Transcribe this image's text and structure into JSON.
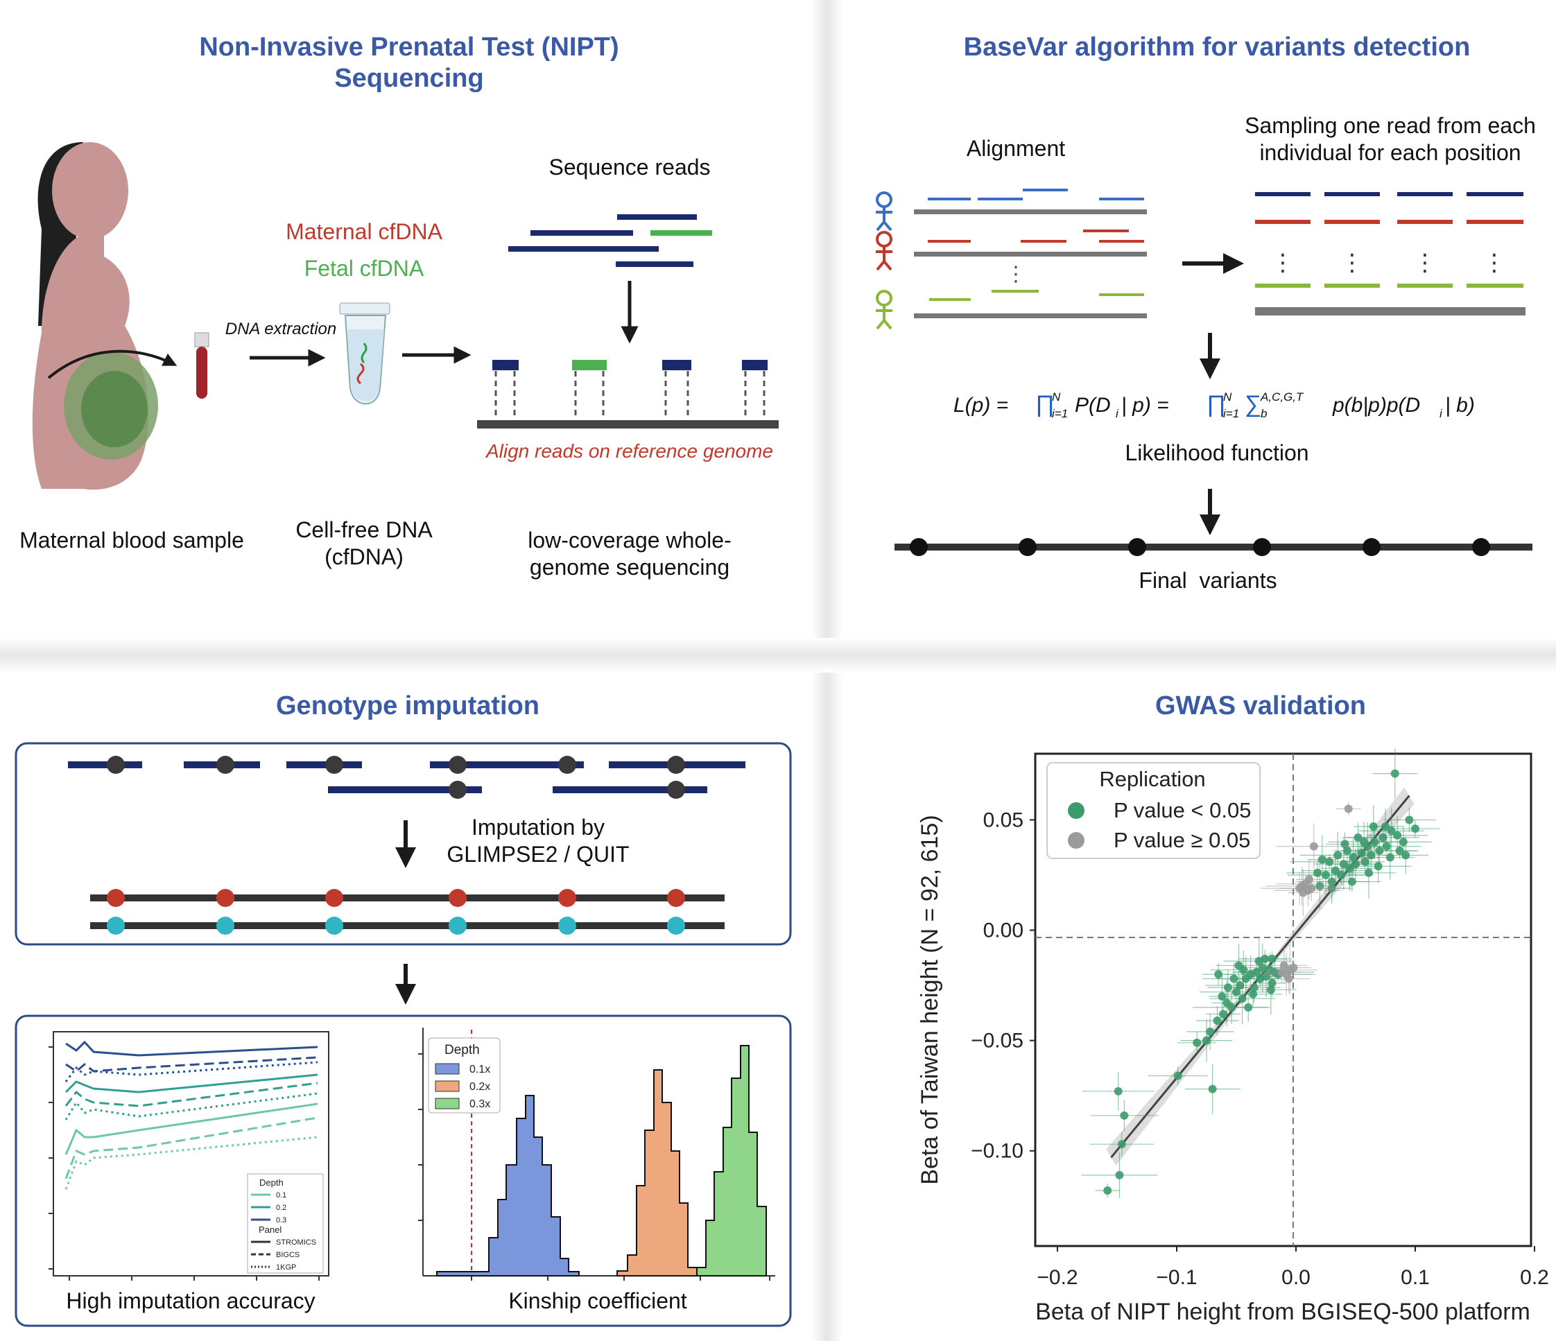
{
  "panel_nipt": {
    "title_line1": "Non-Invasive Prenatal Test (NIPT)",
    "title_line2": "Sequencing",
    "sequence_reads": "Sequence reads",
    "maternal_cfdna": "Maternal cfDNA",
    "fetal_cfdna": "Fetal cfDNA",
    "dna_extraction": "DNA extraction",
    "align_reads": "Align reads on reference genome",
    "maternal_blood_sample": "Maternal blood sample",
    "cell_free_line1": "Cell-free DNA",
    "cell_free_line2": "(cfDNA)",
    "lowcov_line1": "low-coverage whole-",
    "lowcov_line2": "genome sequencing"
  },
  "panel_basevar": {
    "title": "BaseVar algorithm for variants detection",
    "alignment": "Alignment",
    "sampling_line1": "Sampling one read from each",
    "sampling_line2": "individual for each position",
    "likelihood_label": "Likelihood function",
    "final_variants": "Final  variants",
    "colors": {
      "blue": "#3a6fc4",
      "red": "#c0392b",
      "green": "#8bb83a"
    }
  },
  "panel_imputation": {
    "title": "Genotype imputation",
    "imputation_line1": "Imputation by",
    "imputation_line2": "GLIMPSE2 / QUIT",
    "accuracy_caption": "High imputation accuracy",
    "kinship_caption": "Kinship coefficient",
    "accuracy_legend": {
      "depth_title": "Depth",
      "depths": [
        "0.1",
        "0.2",
        "0.3"
      ],
      "panel_title": "Panel",
      "panels": [
        "STROMICS",
        "BIGCS",
        "1KGP"
      ]
    },
    "kinship_legend": {
      "title": "Depth",
      "entries": [
        "0.1x",
        "0.2x",
        "0.3x"
      ],
      "colors": [
        "#7b96db",
        "#eda87d",
        "#8fd68a"
      ]
    }
  },
  "panel_gwas": {
    "title": "GWAS validation",
    "legend_title": "Replication",
    "legend_sig": "P value < 0.05",
    "legend_nonsig": "P value ≥ 0.05",
    "xlabel": "Beta of NIPT height from BGISEQ-500 platform",
    "ylabel": "Beta of Taiwan height (N = 92, 615)",
    "colors": {
      "sig": "#3d9b6b",
      "nonsig": "#9a9a9a"
    }
  },
  "chart_data": {
    "type": "scatter",
    "xlabel": "Beta of NIPT height from BGISEQ-500 platform",
    "ylabel": "Beta of Taiwan height (N = 92, 615)",
    "xlim": [
      -0.2,
      0.2
    ],
    "ylim": [
      -0.14,
      0.08
    ],
    "xticks": [
      "−0.2",
      "−0.1",
      "0.0",
      "0.1",
      "0.2"
    ],
    "yticks": [
      "0.05",
      "0.00",
      "−0.05",
      "−0.10"
    ],
    "xtick_values": [
      -0.2,
      -0.1,
      0.0,
      0.1,
      0.2
    ],
    "ytick_values": [
      0.05,
      0.0,
      -0.05,
      -0.1
    ],
    "fit_line": {
      "x": [
        -0.155,
        0.095
      ],
      "y": [
        -0.103,
        0.061
      ]
    },
    "legend": {
      "title": "Replication",
      "placement": "top-left"
    },
    "series": [
      {
        "name": "P value < 0.05",
        "color": "#3d9b6b",
        "points": [
          [
            -0.158,
            -0.118
          ],
          [
            -0.148,
            -0.111
          ],
          [
            -0.149,
            -0.073
          ],
          [
            -0.144,
            -0.084
          ],
          [
            -0.146,
            -0.097
          ],
          [
            -0.099,
            -0.066
          ],
          [
            -0.07,
            -0.072
          ],
          [
            -0.075,
            -0.05
          ],
          [
            -0.072,
            -0.046
          ],
          [
            -0.066,
            -0.041
          ],
          [
            -0.083,
            -0.051
          ],
          [
            -0.061,
            -0.038
          ],
          [
            -0.058,
            -0.033
          ],
          [
            -0.062,
            -0.03
          ],
          [
            -0.054,
            -0.035
          ],
          [
            -0.05,
            -0.028
          ],
          [
            -0.047,
            -0.025
          ],
          [
            -0.045,
            -0.031
          ],
          [
            -0.042,
            -0.022
          ],
          [
            -0.038,
            -0.02
          ],
          [
            -0.035,
            -0.026
          ],
          [
            -0.033,
            -0.019
          ],
          [
            -0.03,
            -0.022
          ],
          [
            -0.028,
            -0.017
          ],
          [
            -0.025,
            -0.021
          ],
          [
            -0.022,
            -0.018
          ],
          [
            -0.02,
            -0.024
          ],
          [
            -0.018,
            -0.019
          ],
          [
            -0.015,
            -0.02
          ],
          [
            -0.031,
            -0.014
          ],
          [
            -0.044,
            -0.018
          ],
          [
            -0.052,
            -0.022
          ],
          [
            -0.036,
            -0.029
          ],
          [
            -0.026,
            -0.013
          ],
          [
            -0.021,
            -0.027
          ],
          [
            -0.048,
            -0.016
          ],
          [
            -0.057,
            -0.026
          ],
          [
            -0.04,
            -0.035
          ],
          [
            -0.065,
            -0.02
          ],
          [
            -0.02,
            -0.013
          ],
          [
            0.02,
            0.02
          ],
          [
            0.025,
            0.025
          ],
          [
            0.03,
            0.022
          ],
          [
            0.033,
            0.027
          ],
          [
            0.038,
            0.025
          ],
          [
            0.04,
            0.03
          ],
          [
            0.045,
            0.028
          ],
          [
            0.048,
            0.033
          ],
          [
            0.05,
            0.03
          ],
          [
            0.055,
            0.035
          ],
          [
            0.058,
            0.031
          ],
          [
            0.06,
            0.038
          ],
          [
            0.063,
            0.034
          ],
          [
            0.066,
            0.04
          ],
          [
            0.07,
            0.036
          ],
          [
            0.073,
            0.042
          ],
          [
            0.076,
            0.038
          ],
          [
            0.08,
            0.045
          ],
          [
            0.085,
            0.043
          ],
          [
            0.09,
            0.04
          ],
          [
            0.095,
            0.05
          ],
          [
            0.1,
            0.046
          ],
          [
            0.083,
            0.071
          ],
          [
            0.065,
            0.047
          ],
          [
            0.075,
            0.047
          ],
          [
            0.052,
            0.042
          ],
          [
            0.043,
            0.036
          ],
          [
            0.028,
            0.031
          ],
          [
            0.035,
            0.034
          ],
          [
            0.057,
            0.04
          ],
          [
            0.069,
            0.029
          ],
          [
            0.018,
            0.026
          ],
          [
            0.047,
            0.022
          ],
          [
            0.061,
            0.026
          ],
          [
            0.079,
            0.033
          ],
          [
            0.092,
            0.034
          ],
          [
            0.03,
            0.019
          ],
          [
            0.041,
            0.039
          ],
          [
            0.087,
            0.036
          ],
          [
            0.022,
            0.032
          ]
        ]
      },
      {
        "name": "P value ≥ 0.05",
        "color": "#9a9a9a",
        "points": [
          [
            0.044,
            0.055
          ],
          [
            0.015,
            0.038
          ],
          [
            0.005,
            0.02
          ],
          [
            0.01,
            0.018
          ],
          [
            0.013,
            0.019
          ],
          [
            0.008,
            0.021
          ],
          [
            -0.005,
            -0.018
          ],
          [
            -0.008,
            -0.02
          ],
          [
            -0.01,
            -0.016
          ],
          [
            -0.006,
            -0.022
          ],
          [
            -0.012,
            -0.019
          ],
          [
            -0.002,
            -0.017
          ],
          [
            0.006,
            0.017
          ],
          [
            0.011,
            0.023
          ],
          [
            0.003,
            0.019
          ]
        ]
      }
    ]
  }
}
